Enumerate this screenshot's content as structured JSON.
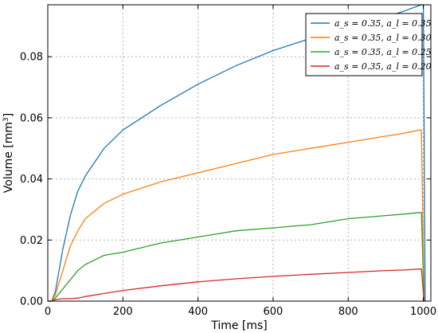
{
  "chart_data": {
    "type": "line",
    "title": "",
    "xlabel": "Time [ms]",
    "ylabel_main": "Volume [mm",
    "ylabel_sup": "3",
    "ylabel_end": "]",
    "xlim": [
      0,
      1020
    ],
    "ylim": [
      0,
      0.097
    ],
    "xticks": [
      0,
      200,
      400,
      600,
      800,
      1000
    ],
    "xtick_labels": [
      "0",
      "200",
      "400",
      "600",
      "800",
      "1000"
    ],
    "yticks": [
      0.0,
      0.02,
      0.04,
      0.06,
      0.08
    ],
    "ytick_labels": [
      "0.00",
      "0.02",
      "0.04",
      "0.06",
      "0.08"
    ],
    "grid": true,
    "legend_position": "top-right",
    "series": [
      {
        "name": "a_s = 0.35, a_l = 0.35",
        "color": "#1f77b4",
        "x": [
          0,
          10,
          20,
          40,
          60,
          80,
          100,
          150,
          200,
          300,
          400,
          500,
          600,
          700,
          800,
          900,
          950,
          995,
          1000,
          1005
        ],
        "y": [
          0,
          0.0,
          0.003,
          0.017,
          0.028,
          0.036,
          0.041,
          0.05,
          0.056,
          0.064,
          0.071,
          0.077,
          0.082,
          0.086,
          0.09,
          0.093,
          0.095,
          0.097,
          0.097,
          0.0
        ]
      },
      {
        "name": "a_s = 0.35, a_l = 0.30",
        "color": "#ff7f0e",
        "x": [
          0,
          10,
          20,
          40,
          60,
          80,
          100,
          150,
          200,
          300,
          400,
          500,
          600,
          700,
          800,
          900,
          950,
          990,
          995,
          1002
        ],
        "y": [
          0,
          0.0,
          0.002,
          0.01,
          0.018,
          0.023,
          0.027,
          0.032,
          0.035,
          0.039,
          0.042,
          0.045,
          0.048,
          0.05,
          0.052,
          0.054,
          0.055,
          0.056,
          0.056,
          0.0
        ]
      },
      {
        "name": "a_s = 0.35, a_l = 0.25",
        "color": "#2ca02c",
        "x": [
          0,
          10,
          20,
          40,
          60,
          80,
          100,
          150,
          200,
          300,
          400,
          500,
          600,
          700,
          800,
          900,
          950,
          990,
          995,
          1002
        ],
        "y": [
          0,
          0.0,
          0.001,
          0.004,
          0.007,
          0.01,
          0.012,
          0.015,
          0.016,
          0.019,
          0.021,
          0.023,
          0.024,
          0.025,
          0.027,
          0.028,
          0.0285,
          0.029,
          0.029,
          0.0
        ]
      },
      {
        "name": "a_s = 0.35, a_l = 0.20",
        "color": "#d62728",
        "x": [
          0,
          10,
          20,
          40,
          60,
          80,
          100,
          150,
          200,
          300,
          400,
          500,
          600,
          700,
          800,
          900,
          950,
          990,
          995,
          1002
        ],
        "y": [
          0,
          0.0,
          0.0005,
          0.0008,
          0.0008,
          0.001,
          0.0015,
          0.0025,
          0.0035,
          0.005,
          0.0063,
          0.0073,
          0.0081,
          0.0088,
          0.0094,
          0.01,
          0.0102,
          0.0105,
          0.0105,
          0.0
        ]
      }
    ]
  }
}
